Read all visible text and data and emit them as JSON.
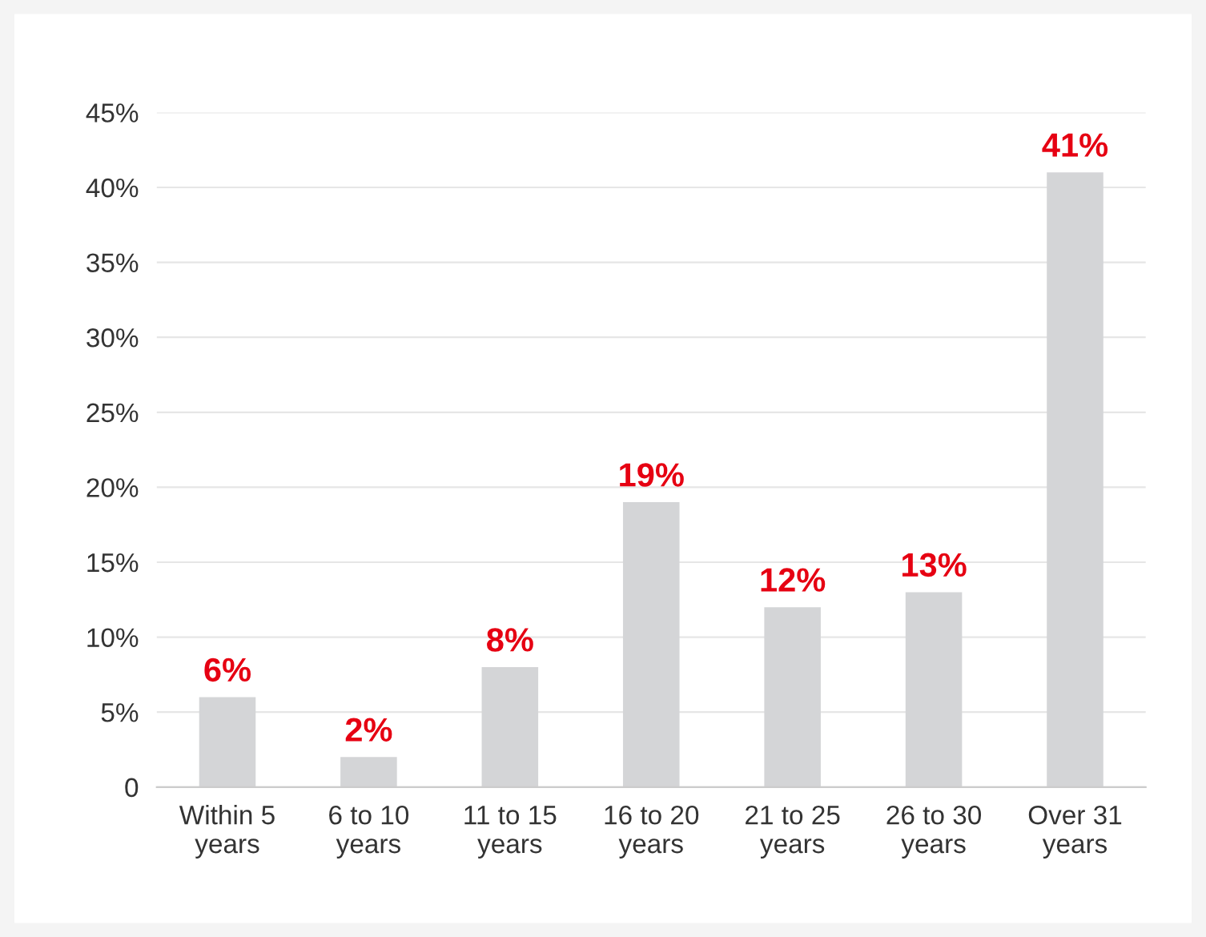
{
  "chart_data": {
    "type": "bar",
    "categories": [
      "Within 5\nyears",
      "6 to 10\nyears",
      "11 to 15\nyears",
      "16 to 20\nyears",
      "21 to 25\nyears",
      "26 to 30\nyears",
      "Over 31\nyears"
    ],
    "values": [
      6,
      2,
      8,
      19,
      12,
      13,
      41
    ],
    "value_labels": [
      "6%",
      "2%",
      "8%",
      "19%",
      "12%",
      "13%",
      "41%"
    ],
    "color": "#d4d5d7",
    "ylim": [
      0,
      45
    ],
    "yticks": [
      0,
      {
        "value": 5,
        "label": "5%"
      },
      {
        "value": 10,
        "label": "10%"
      },
      {
        "value": 15,
        "label": "15%"
      },
      {
        "value": 20,
        "label": "20%"
      },
      {
        "value": 25,
        "label": "25%"
      },
      {
        "value": 30,
        "label": "30%"
      },
      {
        "value": 35,
        "label": "35%"
      },
      {
        "value": 40,
        "label": "40%"
      },
      {
        "value": 45,
        "label": "45%"
      }
    ],
    "grid": "y"
  }
}
